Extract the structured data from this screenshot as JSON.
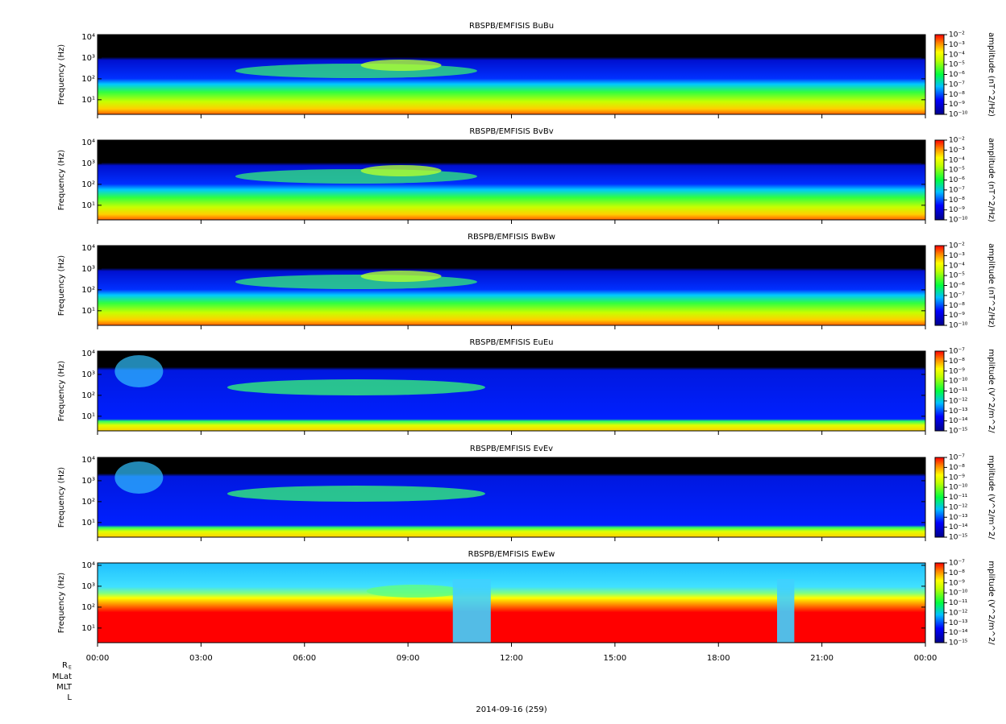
{
  "chart_data": [
    {
      "type": "spectrogram",
      "title": "RBSPB/EMFISIS  BuBu",
      "ylabel": "Frequency (Hz)",
      "log_y": true,
      "ylim": [
        2,
        13000
      ],
      "yticks": [
        {
          "value": 10,
          "label": "10¹"
        },
        {
          "value": 100,
          "label": "10²"
        },
        {
          "value": 1000,
          "label": "10³"
        },
        {
          "value": 10000,
          "label": "10⁴"
        }
      ],
      "zlabel": "amplitude (nT^2/Hz)",
      "zlim": [
        1e-10,
        0.01
      ],
      "zticks": [
        {
          "value": 0.01,
          "label": "10⁻²"
        },
        {
          "value": 0.001,
          "label": "10⁻³"
        },
        {
          "value": 0.0001,
          "label": "10⁻⁴"
        },
        {
          "value": 1e-05,
          "label": "10⁻⁵"
        },
        {
          "value": 1e-06,
          "label": "10⁻⁶"
        },
        {
          "value": 1e-07,
          "label": "10⁻⁷"
        },
        {
          "value": 1e-08,
          "label": "10⁻⁸"
        },
        {
          "value": 1e-09,
          "label": "10⁻⁹"
        },
        {
          "value": 1e-10,
          "label": "10⁻¹⁰"
        }
      ]
    },
    {
      "type": "spectrogram",
      "title": "RBSPB/EMFISIS  BvBv",
      "ylabel": "Frequency (Hz)",
      "log_y": true,
      "ylim": [
        2,
        13000
      ],
      "yticks": [
        {
          "value": 10,
          "label": "10¹"
        },
        {
          "value": 100,
          "label": "10²"
        },
        {
          "value": 1000,
          "label": "10³"
        },
        {
          "value": 10000,
          "label": "10⁴"
        }
      ],
      "zlabel": "amplitude (nT^2/Hz)",
      "zlim": [
        1e-10,
        0.01
      ],
      "zticks": [
        {
          "value": 0.01,
          "label": "10⁻²"
        },
        {
          "value": 0.001,
          "label": "10⁻³"
        },
        {
          "value": 0.0001,
          "label": "10⁻⁴"
        },
        {
          "value": 1e-05,
          "label": "10⁻⁵"
        },
        {
          "value": 1e-06,
          "label": "10⁻⁶"
        },
        {
          "value": 1e-07,
          "label": "10⁻⁷"
        },
        {
          "value": 1e-08,
          "label": "10⁻⁸"
        },
        {
          "value": 1e-09,
          "label": "10⁻⁹"
        },
        {
          "value": 1e-10,
          "label": "10⁻¹⁰"
        }
      ]
    },
    {
      "type": "spectrogram",
      "title": "RBSPB/EMFISIS  BwBw",
      "ylabel": "Frequency (Hz)",
      "log_y": true,
      "ylim": [
        2,
        13000
      ],
      "yticks": [
        {
          "value": 10,
          "label": "10¹"
        },
        {
          "value": 100,
          "label": "10²"
        },
        {
          "value": 1000,
          "label": "10³"
        },
        {
          "value": 10000,
          "label": "10⁴"
        }
      ],
      "zlabel": "amplitude (nT^2/Hz)",
      "zlim": [
        1e-10,
        0.01
      ],
      "zticks": [
        {
          "value": 0.01,
          "label": "10⁻²"
        },
        {
          "value": 0.001,
          "label": "10⁻³"
        },
        {
          "value": 0.0001,
          "label": "10⁻⁴"
        },
        {
          "value": 1e-05,
          "label": "10⁻⁵"
        },
        {
          "value": 1e-06,
          "label": "10⁻⁶"
        },
        {
          "value": 1e-07,
          "label": "10⁻⁷"
        },
        {
          "value": 1e-08,
          "label": "10⁻⁸"
        },
        {
          "value": 1e-09,
          "label": "10⁻⁹"
        },
        {
          "value": 1e-10,
          "label": "10⁻¹⁰"
        }
      ]
    },
    {
      "type": "spectrogram",
      "title": "RBSPB/EMFISIS  EuEu",
      "ylabel": "Frequency (Hz)",
      "log_y": true,
      "ylim": [
        2,
        13000
      ],
      "yticks": [
        {
          "value": 10,
          "label": "10¹"
        },
        {
          "value": 100,
          "label": "10²"
        },
        {
          "value": 1000,
          "label": "10³"
        },
        {
          "value": 10000,
          "label": "10⁴"
        }
      ],
      "zlabel": "mplitude (V^2/m^2/",
      "zlim": [
        1e-15,
        1e-07
      ],
      "zticks": [
        {
          "value": 1e-07,
          "label": "10⁻⁷"
        },
        {
          "value": 1e-08,
          "label": "10⁻⁸"
        },
        {
          "value": 1e-09,
          "label": "10⁻⁹"
        },
        {
          "value": 1e-10,
          "label": "10⁻¹⁰"
        },
        {
          "value": 1e-11,
          "label": "10⁻¹¹"
        },
        {
          "value": 1e-12,
          "label": "10⁻¹²"
        },
        {
          "value": 1e-13,
          "label": "10⁻¹³"
        },
        {
          "value": 1e-14,
          "label": "10⁻¹⁴"
        },
        {
          "value": 1e-15,
          "label": "10⁻¹⁵"
        }
      ]
    },
    {
      "type": "spectrogram",
      "title": "RBSPB/EMFISIS  EvEv",
      "ylabel": "Frequency (Hz)",
      "log_y": true,
      "ylim": [
        2,
        13000
      ],
      "yticks": [
        {
          "value": 10,
          "label": "10¹"
        },
        {
          "value": 100,
          "label": "10²"
        },
        {
          "value": 1000,
          "label": "10³"
        },
        {
          "value": 10000,
          "label": "10⁴"
        }
      ],
      "zlabel": "mplitude (V^2/m^2/",
      "zlim": [
        1e-15,
        1e-07
      ],
      "zticks": [
        {
          "value": 1e-07,
          "label": "10⁻⁷"
        },
        {
          "value": 1e-08,
          "label": "10⁻⁸"
        },
        {
          "value": 1e-09,
          "label": "10⁻⁹"
        },
        {
          "value": 1e-10,
          "label": "10⁻¹⁰"
        },
        {
          "value": 1e-11,
          "label": "10⁻¹¹"
        },
        {
          "value": 1e-12,
          "label": "10⁻¹²"
        },
        {
          "value": 1e-13,
          "label": "10⁻¹³"
        },
        {
          "value": 1e-14,
          "label": "10⁻¹⁴"
        },
        {
          "value": 1e-15,
          "label": "10⁻¹⁵"
        }
      ]
    },
    {
      "type": "spectrogram",
      "title": "RBSPB/EMFISIS  EwEw",
      "ylabel": "Frequency (Hz)",
      "log_y": true,
      "ylim": [
        2,
        13000
      ],
      "yticks": [
        {
          "value": 10,
          "label": "10¹"
        },
        {
          "value": 100,
          "label": "10²"
        },
        {
          "value": 1000,
          "label": "10³"
        },
        {
          "value": 10000,
          "label": "10⁴"
        }
      ],
      "zlabel": "mplitude (V^2/m^2/",
      "zlim": [
        1e-15,
        1e-07
      ],
      "zticks": [
        {
          "value": 1e-07,
          "label": "10⁻⁷"
        },
        {
          "value": 1e-08,
          "label": "10⁻⁸"
        },
        {
          "value": 1e-09,
          "label": "10⁻⁹"
        },
        {
          "value": 1e-10,
          "label": "10⁻¹⁰"
        },
        {
          "value": 1e-11,
          "label": "10⁻¹¹"
        },
        {
          "value": 1e-12,
          "label": "10⁻¹²"
        },
        {
          "value": 1e-13,
          "label": "10⁻¹³"
        },
        {
          "value": 1e-14,
          "label": "10⁻¹⁴"
        },
        {
          "value": 1e-15,
          "label": "10⁻¹⁵"
        }
      ],
      "xlim": [
        0,
        24
      ],
      "xticks": [
        {
          "value": 0,
          "label": "00:00"
        },
        {
          "value": 3,
          "label": "03:00"
        },
        {
          "value": 6,
          "label": "06:00"
        },
        {
          "value": 9,
          "label": "09:00"
        },
        {
          "value": 12,
          "label": "12:00"
        },
        {
          "value": 15,
          "label": "15:00"
        },
        {
          "value": 18,
          "label": "18:00"
        },
        {
          "value": 21,
          "label": "21:00"
        },
        {
          "value": 24,
          "label": "00:00"
        }
      ],
      "xlabel": "2014-09-16 (259)",
      "ephemeris_labels": [
        "R",
        "MLat",
        "MLT",
        "L"
      ],
      "ephemeris_subscript": "E"
    }
  ]
}
